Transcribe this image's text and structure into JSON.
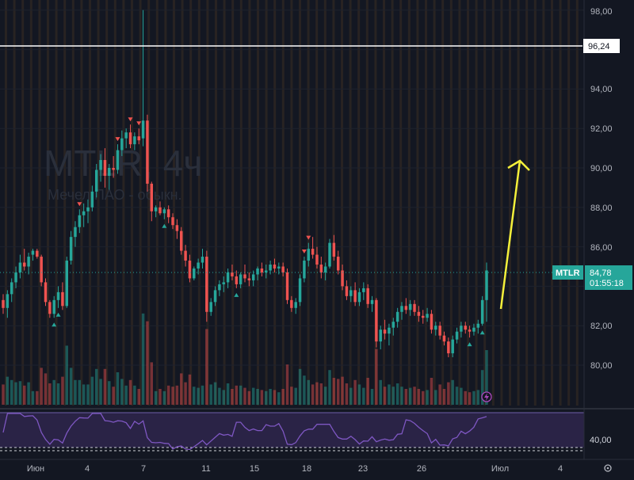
{
  "watermark": {
    "ticker": "MTLR, 4ч",
    "name": "Мечел ПАО - обыкн."
  },
  "price_axis": {
    "labels": [
      "98,00",
      "94,00",
      "92,00",
      "90,00",
      "88,00",
      "86,00",
      "82,00",
      "80,00"
    ]
  },
  "horizontal_line": {
    "price": 96.24,
    "label": "96,24"
  },
  "last_price": {
    "symbol": "MTLR",
    "price": "84,78",
    "countdown": "01:55:18"
  },
  "rsi": {
    "label": "40,00"
  },
  "time_axis": {
    "labels": [
      "Июн",
      "4",
      "7",
      "11",
      "15",
      "18",
      "23",
      "26",
      "Июл",
      "4"
    ]
  },
  "colors": {
    "background": "#131722",
    "up": "#26a69a",
    "down": "#ef5350",
    "session": "#3a2e22",
    "rsi_line": "#7e57c2",
    "arrow": "#f5f03a"
  },
  "icons": {
    "settings": "settings-icon",
    "alert": "lightning-icon"
  },
  "chart_data": {
    "type": "candlestick",
    "title": "MTLR, 4ч",
    "ylim": [
      78.8,
      98.6
    ],
    "candles": [
      [
        83.3,
        83.6,
        82.6,
        82.9
      ],
      [
        82.9,
        83.8,
        82.4,
        83.6
      ],
      [
        83.6,
        84.4,
        83.2,
        84.2
      ],
      [
        84.2,
        85.0,
        83.9,
        84.7
      ],
      [
        84.7,
        85.6,
        84.4,
        85.2
      ],
      [
        85.2,
        85.9,
        84.8,
        85.0
      ],
      [
        85.0,
        85.7,
        84.6,
        85.5
      ],
      [
        85.6,
        85.9,
        85.3,
        85.8
      ],
      [
        85.8,
        85.9,
        85.4,
        85.5
      ],
      [
        85.5,
        85.6,
        84.0,
        84.2
      ],
      [
        84.2,
        84.4,
        83.0,
        83.2
      ],
      [
        83.2,
        83.3,
        82.4,
        82.6
      ],
      [
        82.6,
        83.5,
        82.4,
        83.3
      ],
      [
        83.3,
        84.0,
        82.9,
        83.7
      ],
      [
        83.7,
        84.2,
        82.8,
        83.0
      ],
      [
        83.0,
        85.5,
        82.9,
        85.3
      ],
      [
        85.3,
        86.8,
        85.1,
        86.5
      ],
      [
        86.5,
        87.3,
        86.0,
        87.0
      ],
      [
        87.0,
        87.9,
        86.7,
        87.6
      ],
      [
        87.6,
        88.2,
        87.0,
        87.8
      ],
      [
        87.8,
        88.4,
        87.2,
        88.0
      ],
      [
        88.0,
        89.1,
        87.8,
        88.8
      ],
      [
        88.8,
        90.2,
        88.5,
        89.9
      ],
      [
        89.9,
        90.7,
        89.3,
        90.4
      ],
      [
        90.4,
        91.0,
        89.0,
        89.6
      ],
      [
        89.6,
        90.2,
        88.9,
        90.0
      ],
      [
        90.0,
        90.6,
        89.5,
        89.9
      ],
      [
        89.9,
        91.2,
        89.7,
        90.9
      ],
      [
        90.9,
        91.9,
        90.6,
        91.5
      ],
      [
        91.5,
        92.0,
        91.0,
        91.8
      ],
      [
        91.8,
        92.2,
        91.0,
        91.2
      ],
      [
        91.2,
        91.8,
        90.9,
        91.6
      ],
      [
        91.6,
        92.0,
        91.2,
        91.4
      ],
      [
        91.5,
        98.0,
        91.1,
        92.4
      ],
      [
        92.4,
        92.7,
        88.8,
        89.2
      ],
      [
        89.2,
        89.3,
        87.3,
        87.8
      ],
      [
        87.8,
        88.1,
        87.5,
        88.0
      ],
      [
        88.0,
        88.3,
        87.6,
        87.7
      ],
      [
        87.7,
        88.0,
        87.4,
        87.9
      ],
      [
        87.9,
        88.1,
        87.2,
        87.5
      ],
      [
        87.5,
        87.7,
        86.9,
        87.1
      ],
      [
        87.1,
        87.4,
        86.4,
        86.8
      ],
      [
        86.8,
        87.0,
        85.6,
        85.8
      ],
      [
        85.8,
        86.1,
        85.0,
        85.3
      ],
      [
        85.3,
        85.6,
        84.2,
        84.4
      ],
      [
        84.4,
        85.0,
        84.3,
        84.9
      ],
      [
        84.9,
        85.4,
        84.6,
        85.2
      ],
      [
        85.2,
        85.9,
        84.9,
        85.5
      ],
      [
        85.5,
        85.8,
        82.2,
        82.7
      ],
      [
        82.7,
        83.4,
        82.5,
        83.2
      ],
      [
        83.2,
        84.0,
        83.0,
        83.8
      ],
      [
        83.8,
        84.3,
        83.5,
        84.1
      ],
      [
        84.1,
        84.5,
        83.7,
        84.2
      ],
      [
        84.2,
        84.9,
        83.9,
        84.7
      ],
      [
        84.7,
        85.1,
        84.3,
        84.5
      ],
      [
        84.5,
        84.8,
        83.9,
        84.1
      ],
      [
        84.1,
        84.7,
        83.9,
        84.6
      ],
      [
        84.6,
        85.1,
        84.2,
        84.4
      ],
      [
        84.4,
        84.7,
        84.0,
        84.3
      ],
      [
        84.3,
        84.8,
        84.0,
        84.6
      ],
      [
        84.6,
        85.0,
        84.3,
        84.9
      ],
      [
        84.9,
        85.2,
        84.5,
        84.7
      ],
      [
        84.7,
        85.1,
        84.4,
        84.8
      ],
      [
        84.8,
        85.3,
        84.6,
        85.1
      ],
      [
        85.1,
        85.4,
        84.7,
        84.9
      ],
      [
        84.9,
        85.2,
        84.6,
        85.0
      ],
      [
        85.0,
        85.2,
        84.5,
        84.7
      ],
      [
        84.7,
        84.9,
        83.1,
        83.3
      ],
      [
        83.3,
        83.5,
        82.7,
        82.9
      ],
      [
        82.9,
        83.4,
        82.6,
        83.2
      ],
      [
        83.2,
        84.6,
        83.0,
        84.4
      ],
      [
        84.4,
        85.5,
        84.2,
        85.3
      ],
      [
        85.3,
        86.2,
        85.0,
        85.9
      ],
      [
        85.9,
        86.5,
        85.4,
        85.6
      ],
      [
        85.6,
        86.0,
        84.9,
        85.1
      ],
      [
        85.1,
        85.5,
        84.4,
        84.7
      ],
      [
        84.7,
        85.2,
        84.3,
        85.0
      ],
      [
        85.0,
        86.4,
        84.9,
        86.2
      ],
      [
        86.2,
        86.6,
        85.3,
        85.5
      ],
      [
        85.5,
        85.8,
        84.6,
        84.8
      ],
      [
        84.8,
        85.1,
        83.8,
        84.0
      ],
      [
        84.0,
        84.3,
        83.3,
        83.5
      ],
      [
        83.5,
        84.0,
        83.2,
        83.8
      ],
      [
        83.8,
        84.2,
        83.0,
        83.2
      ],
      [
        83.2,
        83.9,
        83.0,
        83.7
      ],
      [
        83.7,
        84.2,
        83.3,
        83.9
      ],
      [
        83.9,
        84.1,
        82.9,
        83.1
      ],
      [
        83.1,
        83.5,
        82.7,
        83.3
      ],
      [
        83.3,
        83.4,
        80.9,
        81.2
      ],
      [
        81.2,
        82.0,
        80.8,
        81.8
      ],
      [
        81.8,
        82.3,
        81.3,
        81.6
      ],
      [
        81.6,
        82.1,
        81.0,
        81.9
      ],
      [
        81.9,
        82.4,
        81.5,
        82.2
      ],
      [
        82.2,
        82.9,
        81.9,
        82.7
      ],
      [
        82.7,
        83.2,
        82.3,
        83.0
      ],
      [
        83.0,
        83.4,
        82.6,
        82.8
      ],
      [
        82.8,
        83.3,
        82.5,
        83.1
      ],
      [
        83.1,
        83.3,
        82.5,
        82.7
      ],
      [
        82.7,
        83.0,
        82.2,
        82.5
      ],
      [
        82.5,
        82.8,
        82.1,
        82.4
      ],
      [
        82.4,
        82.9,
        82.2,
        82.6
      ],
      [
        82.6,
        82.8,
        81.6,
        81.8
      ],
      [
        81.8,
        82.2,
        81.5,
        82.0
      ],
      [
        82.0,
        82.2,
        81.3,
        81.5
      ],
      [
        81.5,
        81.7,
        81.0,
        81.2
      ],
      [
        81.2,
        81.4,
        80.4,
        80.6
      ],
      [
        80.6,
        81.5,
        80.4,
        81.3
      ],
      [
        81.3,
        81.9,
        81.1,
        81.7
      ],
      [
        81.7,
        82.2,
        81.4,
        82.0
      ],
      [
        82.0,
        82.2,
        81.6,
        81.8
      ],
      [
        81.8,
        82.0,
        81.4,
        81.7
      ],
      [
        81.7,
        82.1,
        81.5,
        81.9
      ],
      [
        81.9,
        82.3,
        81.6,
        82.1
      ],
      [
        82.1,
        83.5,
        82.0,
        83.3
      ],
      [
        83.3,
        85.2,
        82.2,
        84.8
      ]
    ]
  }
}
